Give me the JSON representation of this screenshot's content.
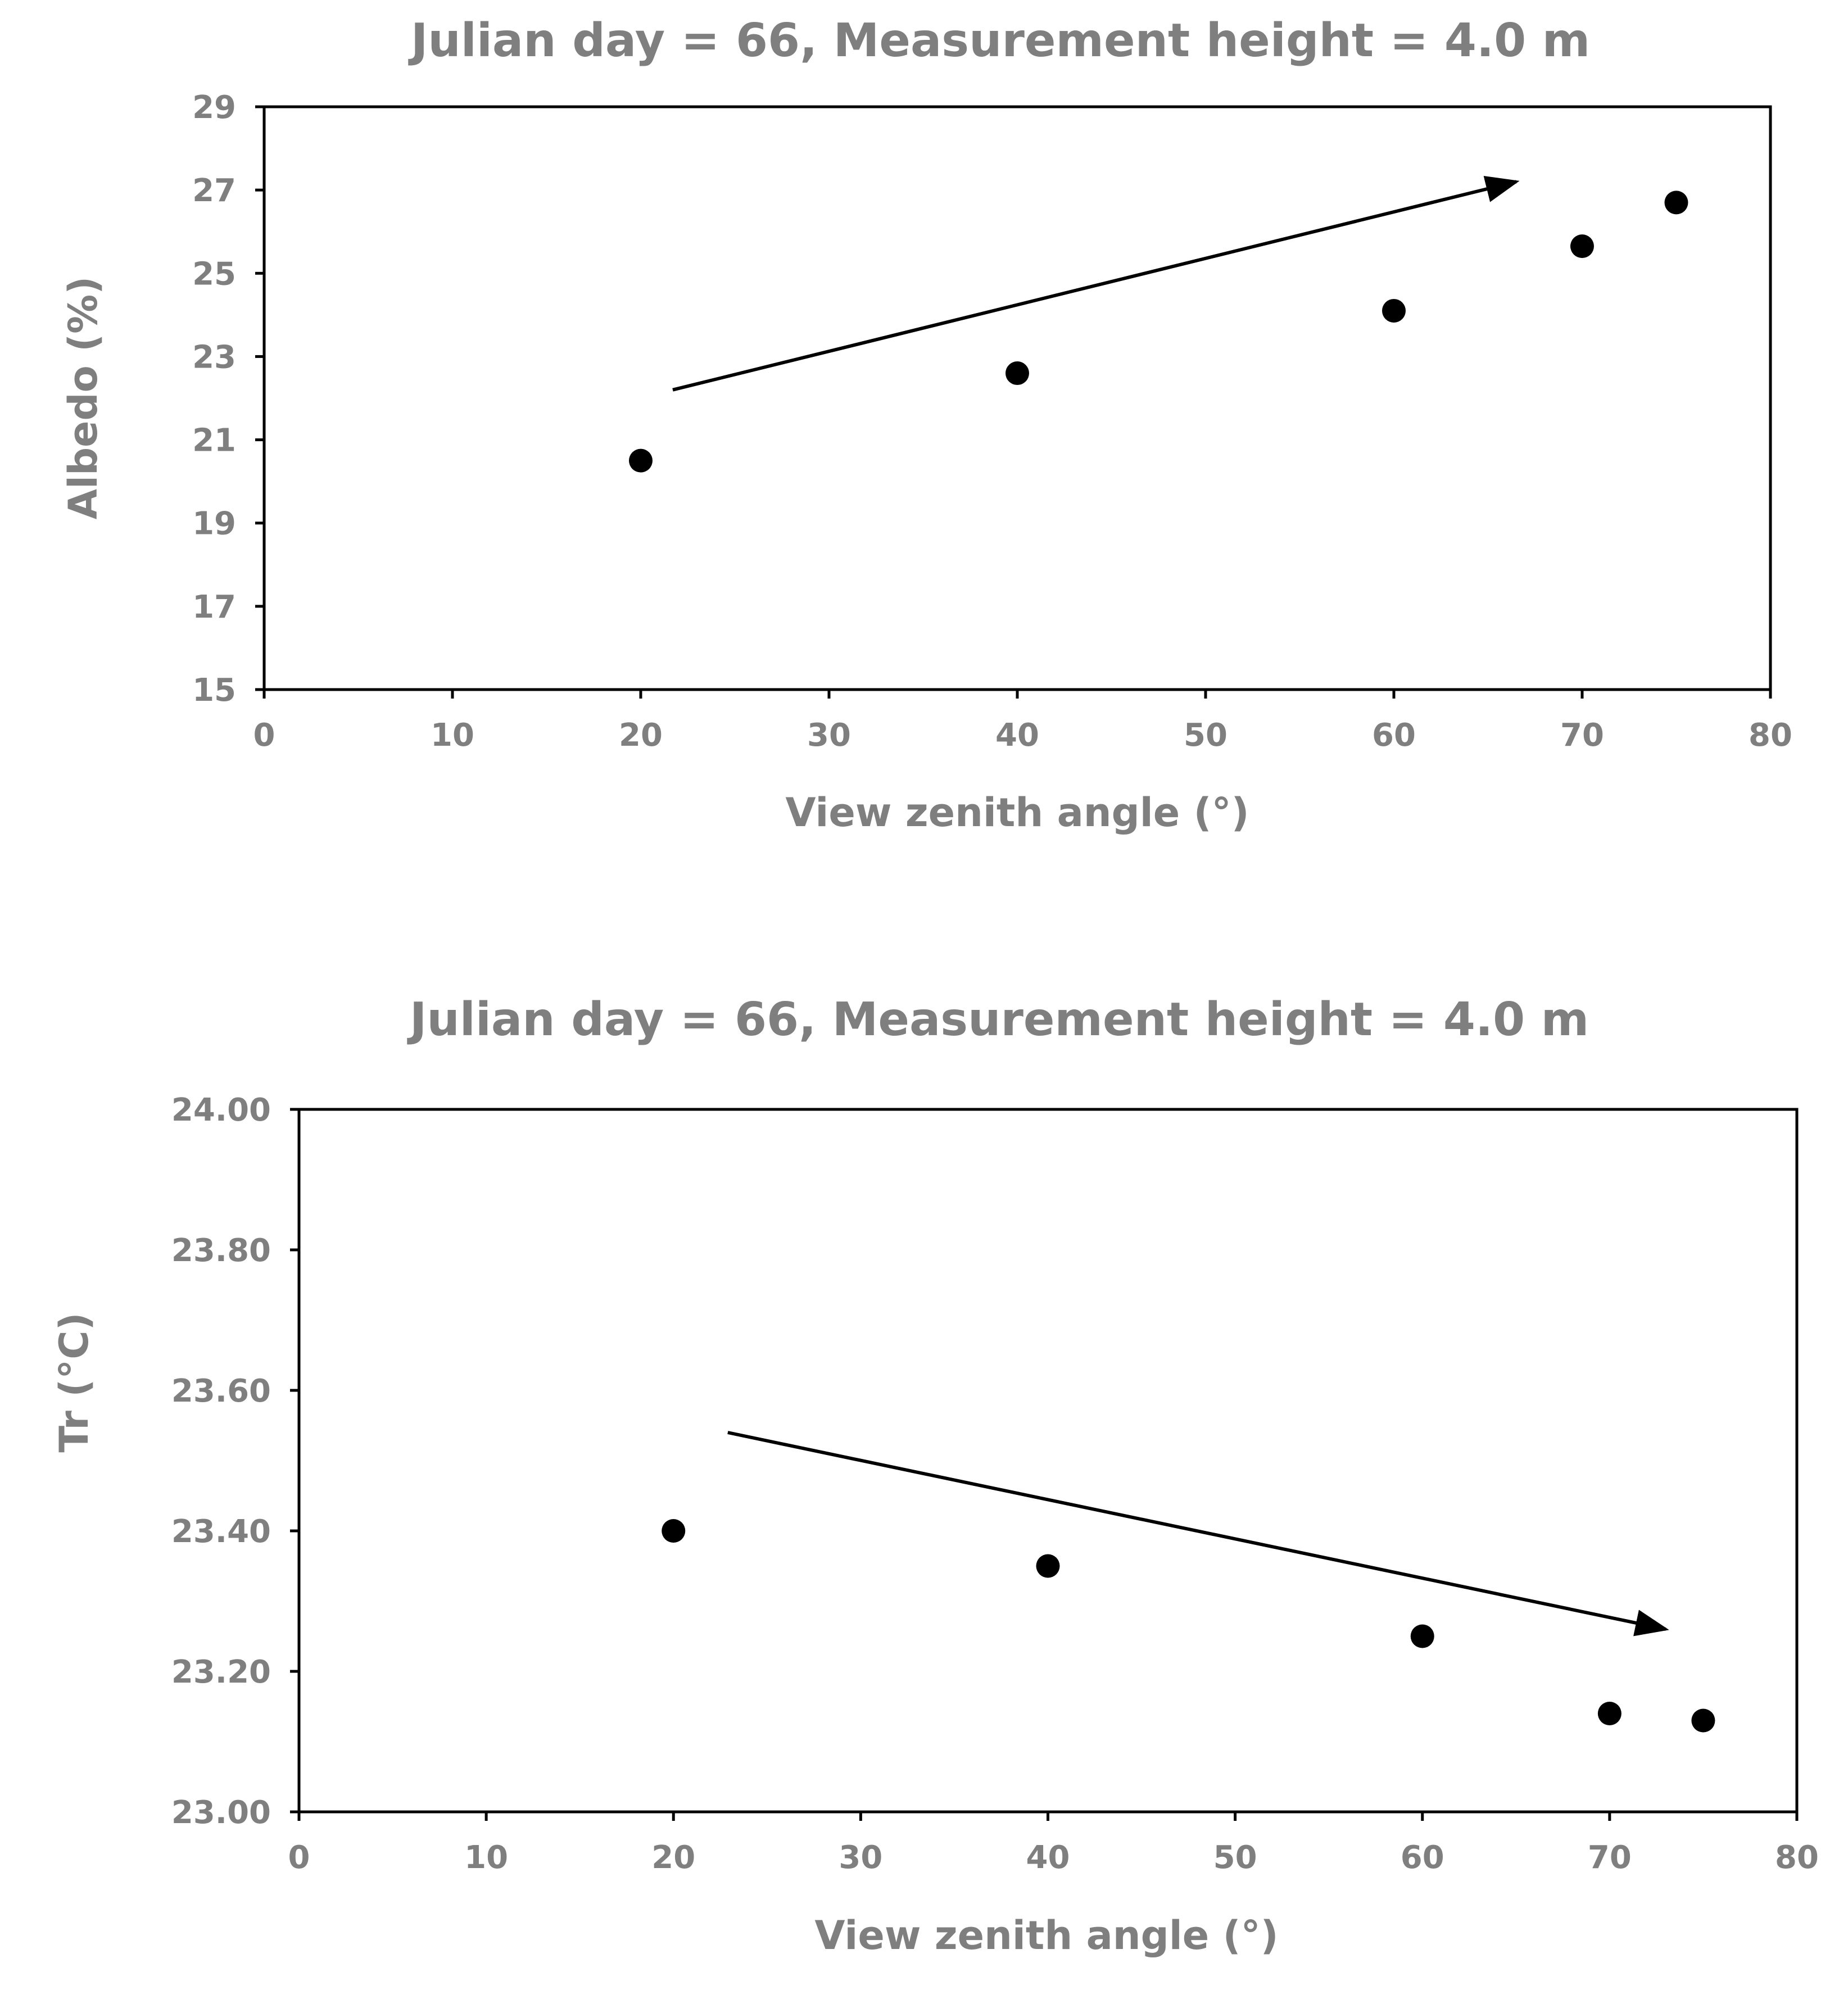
{
  "chart_data": [
    {
      "type": "scatter",
      "title": "Julian day = 66, Measurement height = 4.0 m",
      "xlabel": "View zenith angle (°)",
      "ylabel": "Albedo (%)",
      "xlim": [
        0,
        80
      ],
      "ylim": [
        15,
        29
      ],
      "xticks": [
        0,
        10,
        20,
        30,
        40,
        50,
        60,
        70,
        80
      ],
      "yticks": [
        15,
        17,
        19,
        21,
        23,
        25,
        27,
        29
      ],
      "ytick_labels": [
        "15",
        "17",
        "19",
        "21",
        "23",
        "25",
        "27",
        "29"
      ],
      "grid": false,
      "series": [
        {
          "name": "Albedo",
          "x": [
            20,
            40,
            60,
            70,
            75
          ],
          "y": [
            20.5,
            22.6,
            24.1,
            25.65,
            26.7
          ]
        }
      ],
      "annotations": [
        {
          "type": "arrow",
          "direction": "increasing",
          "from": [
            21.7,
            22.2
          ],
          "to": [
            66.5,
            27.2
          ]
        }
      ]
    },
    {
      "type": "scatter",
      "title": "Julian day = 66, Measurement height = 4.0 m",
      "xlabel": "View zenith angle (°)",
      "ylabel": "Tr (°C)",
      "xlim": [
        0,
        80
      ],
      "ylim": [
        23.0,
        24.0
      ],
      "xticks": [
        0,
        10,
        20,
        30,
        40,
        50,
        60,
        70,
        80
      ],
      "yticks": [
        23.0,
        23.2,
        23.4,
        23.6,
        23.8,
        24.0
      ],
      "ytick_labels": [
        "23.00",
        "23.20",
        "23.40",
        "23.60",
        "23.80",
        "24.00"
      ],
      "grid": false,
      "series": [
        {
          "name": "Tr",
          "x": [
            20,
            40,
            60,
            70,
            75
          ],
          "y": [
            23.4,
            23.35,
            23.25,
            23.14,
            23.13
          ]
        }
      ],
      "annotations": [
        {
          "type": "arrow",
          "direction": "decreasing",
          "from": [
            22.9,
            23.54
          ],
          "to": [
            73.0,
            23.26
          ]
        }
      ]
    }
  ]
}
